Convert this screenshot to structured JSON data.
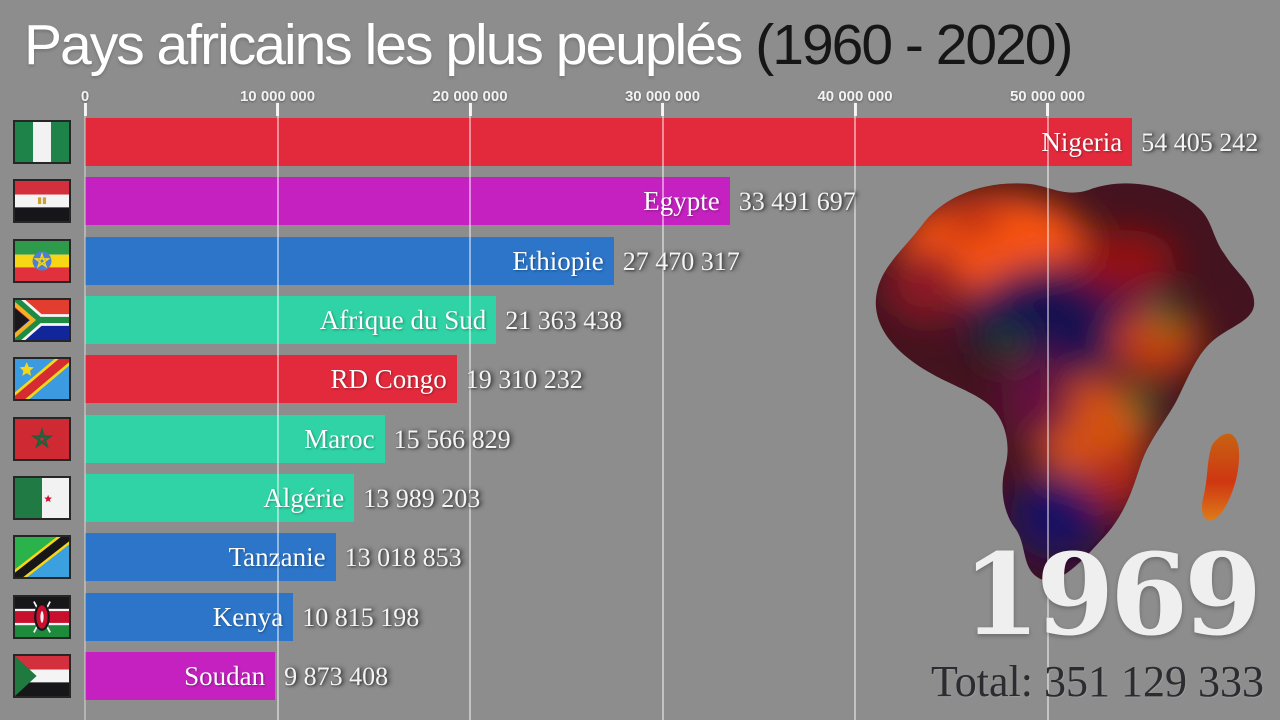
{
  "title": {
    "main": "Pays africains les plus peuplés",
    "suffix": " (1960 - 2020)"
  },
  "axis": {
    "ticks": [
      {
        "label": "0",
        "value": 0
      },
      {
        "label": "10 000 000",
        "value": 10000000
      },
      {
        "label": "20 000 000",
        "value": 20000000
      },
      {
        "label": "30 000 000",
        "value": 30000000
      },
      {
        "label": "40 000 000",
        "value": 40000000
      },
      {
        "label": "50 000 000",
        "value": 50000000
      }
    ]
  },
  "overlay": {
    "year": "1969",
    "total": "Total: 351 129 333"
  },
  "colors": {
    "background": "#8e8d8e",
    "red_bar": "#e22a3c",
    "magenta_bar": "#c521c0",
    "blue_bar": "#2c75c8",
    "teal_bar": "#2fd3a5",
    "gridline": "rgba(255,255,255,0.48)",
    "title_main": "#ffffff",
    "title_suffix": "#161616",
    "year_text": "#efefef",
    "total_text": "#2b2b30"
  },
  "chart_data": {
    "type": "bar",
    "orientation": "horizontal",
    "title": "Pays africains les plus peuplés (1960 - 2020)",
    "frame_year": "1969",
    "total_shown": "Total: 351 129 333",
    "total_value": 351129333,
    "xlim": [
      0,
      56000000
    ],
    "grid": true,
    "gridline_values": [
      0,
      10000000,
      20000000,
      30000000,
      40000000,
      50000000
    ],
    "categories": [
      "Nigeria",
      "Egypte",
      "Ethiopie",
      "Afrique du Sud",
      "RD Congo",
      "Maroc",
      "Algérie",
      "Tanzanie",
      "Kenya",
      "Soudan"
    ],
    "values": [
      54405242,
      33491697,
      27470317,
      21363438,
      19310232,
      15566829,
      13989203,
      13018853,
      10815198,
      9873408
    ],
    "display_values": [
      "54 405 242",
      "33 491 697",
      "27 470 317",
      "21 363 438",
      "19 310 232",
      "15 566 829",
      "13 989 203",
      "13 018 853",
      "10 815 198",
      "9 873 408"
    ],
    "bar_colors": [
      "#e22a3c",
      "#c521c0",
      "#2c75c8",
      "#2fd3a5",
      "#e22a3c",
      "#2fd3a5",
      "#2fd3a5",
      "#2c75c8",
      "#2c75c8",
      "#c521c0"
    ],
    "flags": [
      "nigeria-flag",
      "egypt-flag",
      "ethiopia-flag",
      "south-africa-flag",
      "dr-congo-flag",
      "morocco-flag",
      "algeria-flag",
      "tanzania-flag",
      "kenya-flag",
      "sudan-flag"
    ]
  }
}
